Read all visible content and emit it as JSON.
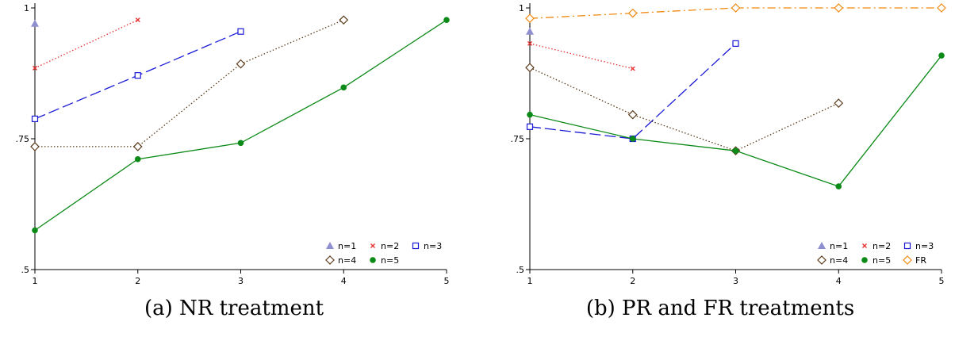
{
  "chart_data": [
    {
      "type": "line",
      "caption": "(a) NR treatment",
      "x_ticks": [
        1,
        2,
        3,
        4,
        5
      ],
      "y_ticks": [
        0.5,
        0.75,
        1
      ],
      "y_tick_labels": [
        ".5",
        ".75",
        "1"
      ],
      "xlim": [
        1,
        5
      ],
      "ylim": [
        0.5,
        1
      ],
      "grid": false,
      "legend_position": "bottom-right",
      "series": [
        {
          "name": "n=1",
          "x": [
            1
          ],
          "y": [
            0.97
          ],
          "color": "#8f8fd0",
          "marker": "triangle",
          "line": "solid"
        },
        {
          "name": "n=2",
          "x": [
            1,
            2
          ],
          "y": [
            0.885,
            0.977
          ],
          "color": "#e83030",
          "marker": "x",
          "line": "dotted"
        },
        {
          "name": "n=3",
          "x": [
            1,
            2,
            3
          ],
          "y": [
            0.788,
            0.871,
            0.955
          ],
          "color": "#1a1ad6",
          "marker": "square",
          "line": "longdash"
        },
        {
          "name": "n=4",
          "x": [
            1,
            2,
            3,
            4
          ],
          "y": [
            0.735,
            0.735,
            0.893,
            0.977
          ],
          "color": "#5a3a1a",
          "marker": "diamond",
          "line": "dotted"
        },
        {
          "name": "n=5",
          "x": [
            1,
            2,
            3,
            4,
            5
          ],
          "y": [
            0.575,
            0.711,
            0.742,
            0.848,
            0.977
          ],
          "color": "#0b8a17",
          "marker": "circle",
          "line": "solid"
        }
      ]
    },
    {
      "type": "line",
      "caption": "(b) PR and FR treatments",
      "x_ticks": [
        1,
        2,
        3,
        4,
        5
      ],
      "y_ticks": [
        0.5,
        0.75,
        1
      ],
      "y_tick_labels": [
        ".5",
        ".75",
        "1"
      ],
      "xlim": [
        1,
        5
      ],
      "ylim": [
        0.5,
        1
      ],
      "grid": false,
      "legend_position": "bottom-right",
      "series": [
        {
          "name": "n=1",
          "x": [
            1
          ],
          "y": [
            0.955
          ],
          "color": "#8f8fd0",
          "marker": "triangle",
          "line": "solid"
        },
        {
          "name": "n=2",
          "x": [
            1,
            2
          ],
          "y": [
            0.932,
            0.884
          ],
          "color": "#e83030",
          "marker": "x",
          "line": "dotted"
        },
        {
          "name": "n=3",
          "x": [
            1,
            2,
            3
          ],
          "y": [
            0.773,
            0.75,
            0.932
          ],
          "color": "#1a1ad6",
          "marker": "square",
          "line": "longdash"
        },
        {
          "name": "n=4",
          "x": [
            1,
            2,
            3,
            4
          ],
          "y": [
            0.886,
            0.796,
            0.727,
            0.818
          ],
          "color": "#5a3a1a",
          "marker": "diamond",
          "line": "dotted"
        },
        {
          "name": "n=5",
          "x": [
            1,
            2,
            3,
            4,
            5
          ],
          "y": [
            0.796,
            0.75,
            0.727,
            0.659,
            0.909
          ],
          "color": "#0b8a17",
          "marker": "circle",
          "line": "solid"
        },
        {
          "name": "FR",
          "x": [
            1,
            2,
            3,
            4,
            5
          ],
          "y": [
            0.98,
            0.99,
            1.0,
            1.0,
            1.0
          ],
          "color": "#f08a10",
          "marker": "diamond",
          "line": "dashdot"
        }
      ]
    }
  ]
}
